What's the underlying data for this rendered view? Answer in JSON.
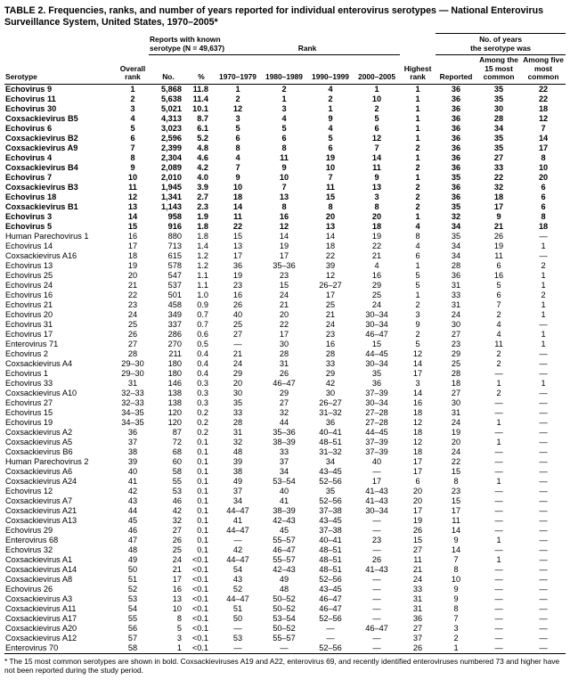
{
  "title": "TABLE 2. Frequencies, ranks, and number of years reported for individual enterovirus serotypes — National Enterovirus Surveillance System, United States, 1970–2005*",
  "table": {
    "header": {
      "serotype": "Serotype",
      "overall_rank": "Overall rank",
      "reports_group_line1": "Reports with known",
      "reports_group_line2": "serotype (N = 49,637)",
      "no": "No.",
      "pct": "%",
      "rank_group": "Rank",
      "decade1": "1970–1979",
      "decade2": "1980–1989",
      "decade3": "1990–1999",
      "decade4": "2000–2005",
      "highest_rank": "Highest rank",
      "years_group_line1": "No. of years",
      "years_group_line2": "the serotype was",
      "reported": "Reported",
      "among_15": "Among the 15 most common",
      "among_5": "Among five most common"
    },
    "rows": [
      {
        "bold": true,
        "cells": [
          "Echovirus 9",
          "1",
          "5,868",
          "11.8",
          "1",
          "2",
          "4",
          "1",
          "1",
          "36",
          "35",
          "22"
        ]
      },
      {
        "bold": true,
        "cells": [
          "Echovirus 11",
          "2",
          "5,638",
          "11.4",
          "2",
          "1",
          "2",
          "10",
          "1",
          "36",
          "35",
          "22"
        ]
      },
      {
        "bold": true,
        "cells": [
          "Echovirus 30",
          "3",
          "5,021",
          "10.1",
          "12",
          "3",
          "1",
          "2",
          "1",
          "36",
          "30",
          "18"
        ]
      },
      {
        "bold": true,
        "cells": [
          "Coxsackievirus B5",
          "4",
          "4,313",
          "8.7",
          "3",
          "4",
          "9",
          "5",
          "1",
          "36",
          "28",
          "12"
        ]
      },
      {
        "bold": true,
        "cells": [
          "Echovirus 6",
          "5",
          "3,023",
          "6.1",
          "5",
          "5",
          "4",
          "6",
          "1",
          "36",
          "34",
          "7"
        ]
      },
      {
        "bold": true,
        "cells": [
          "Coxsackievirus B2",
          "6",
          "2,596",
          "5.2",
          "6",
          "6",
          "5",
          "12",
          "1",
          "36",
          "35",
          "14"
        ]
      },
      {
        "bold": true,
        "cells": [
          "Coxsackievirus A9",
          "7",
          "2,399",
          "4.8",
          "8",
          "8",
          "6",
          "7",
          "2",
          "36",
          "35",
          "17"
        ]
      },
      {
        "bold": true,
        "cells": [
          "Echovirus 4",
          "8",
          "2,304",
          "4.6",
          "4",
          "11",
          "19",
          "14",
          "1",
          "36",
          "27",
          "8"
        ]
      },
      {
        "bold": true,
        "cells": [
          "Coxsackievirus B4",
          "9",
          "2,089",
          "4.2",
          "7",
          "9",
          "10",
          "11",
          "2",
          "36",
          "33",
          "10"
        ]
      },
      {
        "bold": true,
        "cells": [
          "Echovirus 7",
          "10",
          "2,010",
          "4.0",
          "9",
          "10",
          "7",
          "9",
          "1",
          "35",
          "22",
          "20"
        ]
      },
      {
        "bold": true,
        "cells": [
          "Coxsackievirus B3",
          "11",
          "1,945",
          "3.9",
          "10",
          "7",
          "11",
          "13",
          "2",
          "36",
          "32",
          "6"
        ]
      },
      {
        "bold": true,
        "cells": [
          "Echovirus 18",
          "12",
          "1,341",
          "2.7",
          "18",
          "13",
          "15",
          "3",
          "2",
          "36",
          "18",
          "6"
        ]
      },
      {
        "bold": true,
        "cells": [
          "Coxsackievirus B1",
          "13",
          "1,143",
          "2.3",
          "14",
          "8",
          "8",
          "8",
          "2",
          "35",
          "17",
          "6"
        ]
      },
      {
        "bold": true,
        "cells": [
          "Echovirus 3",
          "14",
          "958",
          "1.9",
          "11",
          "16",
          "20",
          "20",
          "1",
          "32",
          "9",
          "8"
        ]
      },
      {
        "bold": true,
        "cells": [
          "Echovirus 5",
          "15",
          "916",
          "1.8",
          "22",
          "12",
          "13",
          "18",
          "4",
          "34",
          "21",
          "18"
        ]
      },
      {
        "bold": false,
        "cells": [
          "Human Parechovirus 1",
          "16",
          "880",
          "1.8",
          "15",
          "14",
          "14",
          "19",
          "8",
          "35",
          "26",
          "—"
        ]
      },
      {
        "bold": false,
        "cells": [
          "Echovirus 14",
          "17",
          "713",
          "1.4",
          "13",
          "19",
          "18",
          "22",
          "4",
          "34",
          "19",
          "1"
        ]
      },
      {
        "bold": false,
        "cells": [
          "Coxsackievirus A16",
          "18",
          "615",
          "1.2",
          "17",
          "17",
          "22",
          "21",
          "6",
          "34",
          "11",
          "—"
        ]
      },
      {
        "bold": false,
        "cells": [
          "Echovirus 13",
          "19",
          "578",
          "1.2",
          "36",
          "35–36",
          "39",
          "4",
          "1",
          "28",
          "6",
          "2"
        ]
      },
      {
        "bold": false,
        "cells": [
          "Echovirus 25",
          "20",
          "547",
          "1.1",
          "19",
          "23",
          "12",
          "16",
          "5",
          "36",
          "16",
          "1"
        ]
      },
      {
        "bold": false,
        "cells": [
          "Echovirus 24",
          "21",
          "537",
          "1.1",
          "23",
          "15",
          "26–27",
          "29",
          "5",
          "31",
          "5",
          "1"
        ]
      },
      {
        "bold": false,
        "cells": [
          "Echovirus 16",
          "22",
          "501",
          "1.0",
          "16",
          "24",
          "17",
          "25",
          "1",
          "33",
          "6",
          "2"
        ]
      },
      {
        "bold": false,
        "cells": [
          "Echovirus 21",
          "23",
          "458",
          "0.9",
          "26",
          "21",
          "25",
          "24",
          "2",
          "31",
          "7",
          "1"
        ]
      },
      {
        "bold": false,
        "cells": [
          "Echovirus 20",
          "24",
          "349",
          "0.7",
          "40",
          "20",
          "21",
          "30–34",
          "3",
          "24",
          "2",
          "1"
        ]
      },
      {
        "bold": false,
        "cells": [
          "Echovirus 31",
          "25",
          "337",
          "0.7",
          "25",
          "22",
          "24",
          "30–34",
          "9",
          "30",
          "4",
          "—"
        ]
      },
      {
        "bold": false,
        "cells": [
          "Echovirus 17",
          "26",
          "286",
          "0.6",
          "27",
          "17",
          "23",
          "46–47",
          "2",
          "27",
          "4",
          "1"
        ]
      },
      {
        "bold": false,
        "cells": [
          "Enterovirus 71",
          "27",
          "270",
          "0.5",
          "—",
          "30",
          "16",
          "15",
          "5",
          "23",
          "11",
          "1"
        ]
      },
      {
        "bold": false,
        "cells": [
          "Echovirus 2",
          "28",
          "211",
          "0.4",
          "21",
          "28",
          "28",
          "44–45",
          "12",
          "29",
          "2",
          "—"
        ]
      },
      {
        "bold": false,
        "cells": [
          "Coxsackievirus A4",
          "29–30",
          "180",
          "0.4",
          "24",
          "31",
          "33",
          "30–34",
          "14",
          "25",
          "2",
          "—"
        ]
      },
      {
        "bold": false,
        "cells": [
          "Echovirus 1",
          "29–30",
          "180",
          "0.4",
          "29",
          "26",
          "29",
          "35",
          "17",
          "28",
          "—",
          "—"
        ]
      },
      {
        "bold": false,
        "cells": [
          "Echovirus 33",
          "31",
          "146",
          "0.3",
          "20",
          "46–47",
          "42",
          "36",
          "3",
          "18",
          "1",
          "1"
        ]
      },
      {
        "bold": false,
        "cells": [
          "Coxsackievirus A10",
          "32–33",
          "138",
          "0.3",
          "30",
          "29",
          "30",
          "37–39",
          "14",
          "27",
          "2",
          "—"
        ]
      },
      {
        "bold": false,
        "cells": [
          "Echovirus 27",
          "32–33",
          "138",
          "0.3",
          "35",
          "27",
          "26–27",
          "30–34",
          "16",
          "30",
          "—",
          "—"
        ]
      },
      {
        "bold": false,
        "cells": [
          "Echovirus 15",
          "34–35",
          "120",
          "0.2",
          "33",
          "32",
          "31–32",
          "27–28",
          "18",
          "31",
          "—",
          "—"
        ]
      },
      {
        "bold": false,
        "cells": [
          "Echovirus 19",
          "34–35",
          "120",
          "0.2",
          "28",
          "44",
          "36",
          "27–28",
          "12",
          "24",
          "1",
          "—"
        ]
      },
      {
        "bold": false,
        "cells": [
          "Coxsackievirus A2",
          "36",
          "87",
          "0.2",
          "31",
          "35–36",
          "40–41",
          "44–45",
          "18",
          "19",
          "—",
          "—"
        ]
      },
      {
        "bold": false,
        "cells": [
          "Coxsackievirus A5",
          "37",
          "72",
          "0.1",
          "32",
          "38–39",
          "48–51",
          "37–39",
          "12",
          "20",
          "1",
          "—"
        ]
      },
      {
        "bold": false,
        "cells": [
          "Coxsackievirus B6",
          "38",
          "68",
          "0.1",
          "48",
          "33",
          "31–32",
          "37–39",
          "18",
          "24",
          "—",
          "—"
        ]
      },
      {
        "bold": false,
        "cells": [
          "Human Parechovirus 2",
          "39",
          "60",
          "0.1",
          "39",
          "37",
          "34",
          "40",
          "17",
          "22",
          "—",
          "—"
        ]
      },
      {
        "bold": false,
        "cells": [
          "Coxsackievirus A6",
          "40",
          "58",
          "0.1",
          "38",
          "34",
          "43–45",
          "—",
          "17",
          "15",
          "—",
          "—"
        ]
      },
      {
        "bold": false,
        "cells": [
          "Coxsackievirus A24",
          "41",
          "55",
          "0.1",
          "49",
          "53–54",
          "52–56",
          "17",
          "6",
          "8",
          "1",
          "—"
        ]
      },
      {
        "bold": false,
        "cells": [
          "Echovirus 12",
          "42",
          "53",
          "0.1",
          "37",
          "40",
          "35",
          "41–43",
          "20",
          "23",
          "—",
          "—"
        ]
      },
      {
        "bold": false,
        "cells": [
          "Coxsackievirus A7",
          "43",
          "46",
          "0.1",
          "34",
          "41",
          "52–56",
          "41–43",
          "20",
          "15",
          "—",
          "—"
        ]
      },
      {
        "bold": false,
        "cells": [
          "Coxsackievirus A21",
          "44",
          "42",
          "0.1",
          "44–47",
          "38–39",
          "37–38",
          "30–34",
          "17",
          "17",
          "—",
          "—"
        ]
      },
      {
        "bold": false,
        "cells": [
          "Coxsackievirus A13",
          "45",
          "32",
          "0.1",
          "41",
          "42–43",
          "43–45",
          "—",
          "19",
          "11",
          "—",
          "—"
        ]
      },
      {
        "bold": false,
        "cells": [
          "Echovirus 29",
          "46",
          "27",
          "0.1",
          "44–47",
          "45",
          "37–38",
          "—",
          "26",
          "14",
          "—",
          "—"
        ]
      },
      {
        "bold": false,
        "cells": [
          "Enterovirus 68",
          "47",
          "26",
          "0.1",
          "—",
          "55–57",
          "40–41",
          "23",
          "15",
          "9",
          "1",
          "—"
        ]
      },
      {
        "bold": false,
        "cells": [
          "Echovirus 32",
          "48",
          "25",
          "0.1",
          "42",
          "46–47",
          "48–51",
          "—",
          "27",
          "14",
          "—",
          "—"
        ]
      },
      {
        "bold": false,
        "cells": [
          "Coxsackievirus A1",
          "49",
          "24",
          "<0.1",
          "44–47",
          "55–57",
          "48–51",
          "26",
          "11",
          "7",
          "1",
          "—"
        ]
      },
      {
        "bold": false,
        "cells": [
          "Coxsackievirus A14",
          "50",
          "21",
          "<0.1",
          "54",
          "42–43",
          "48–51",
          "41–43",
          "21",
          "8",
          "—",
          "—"
        ]
      },
      {
        "bold": false,
        "cells": [
          "Coxsackievirus A8",
          "51",
          "17",
          "<0.1",
          "43",
          "49",
          "52–56",
          "—",
          "24",
          "10",
          "—",
          "—"
        ]
      },
      {
        "bold": false,
        "cells": [
          "Echovirus 26",
          "52",
          "16",
          "<0.1",
          "52",
          "48",
          "43–45",
          "—",
          "33",
          "9",
          "—",
          "—"
        ]
      },
      {
        "bold": false,
        "cells": [
          "Coxsackievirus A3",
          "53",
          "13",
          "<0.1",
          "44–47",
          "50–52",
          "46–47",
          "—",
          "31",
          "9",
          "—",
          "—"
        ]
      },
      {
        "bold": false,
        "cells": [
          "Coxsackievirus A11",
          "54",
          "10",
          "<0.1",
          "51",
          "50–52",
          "46–47",
          "—",
          "31",
          "8",
          "—",
          "—"
        ]
      },
      {
        "bold": false,
        "cells": [
          "Coxsackievirus A17",
          "55",
          "8",
          "<0.1",
          "50",
          "53–54",
          "52–56",
          "—",
          "36",
          "7",
          "—",
          "—"
        ]
      },
      {
        "bold": false,
        "cells": [
          "Coxsackievirus A20",
          "56",
          "5",
          "<0.1",
          "—",
          "50–52",
          "—",
          "46–47",
          "27",
          "3",
          "—",
          "—"
        ]
      },
      {
        "bold": false,
        "cells": [
          "Coxsackievirus A12",
          "57",
          "3",
          "<0.1",
          "53",
          "55–57",
          "—",
          "—",
          "37",
          "2",
          "—",
          "—"
        ]
      },
      {
        "bold": false,
        "cells": [
          "Enterovirus 70",
          "58",
          "1",
          "<0.1",
          "—",
          "—",
          "52–56",
          "—",
          "26",
          "1",
          "—",
          "—"
        ]
      }
    ]
  },
  "footnote": "* The 15 most common serotypes are shown in bold. Coxsackieviruses A19 and A22, enterovirus 69, and recently identified enteroviruses numbered 73 and higher have not been reported during the study period."
}
